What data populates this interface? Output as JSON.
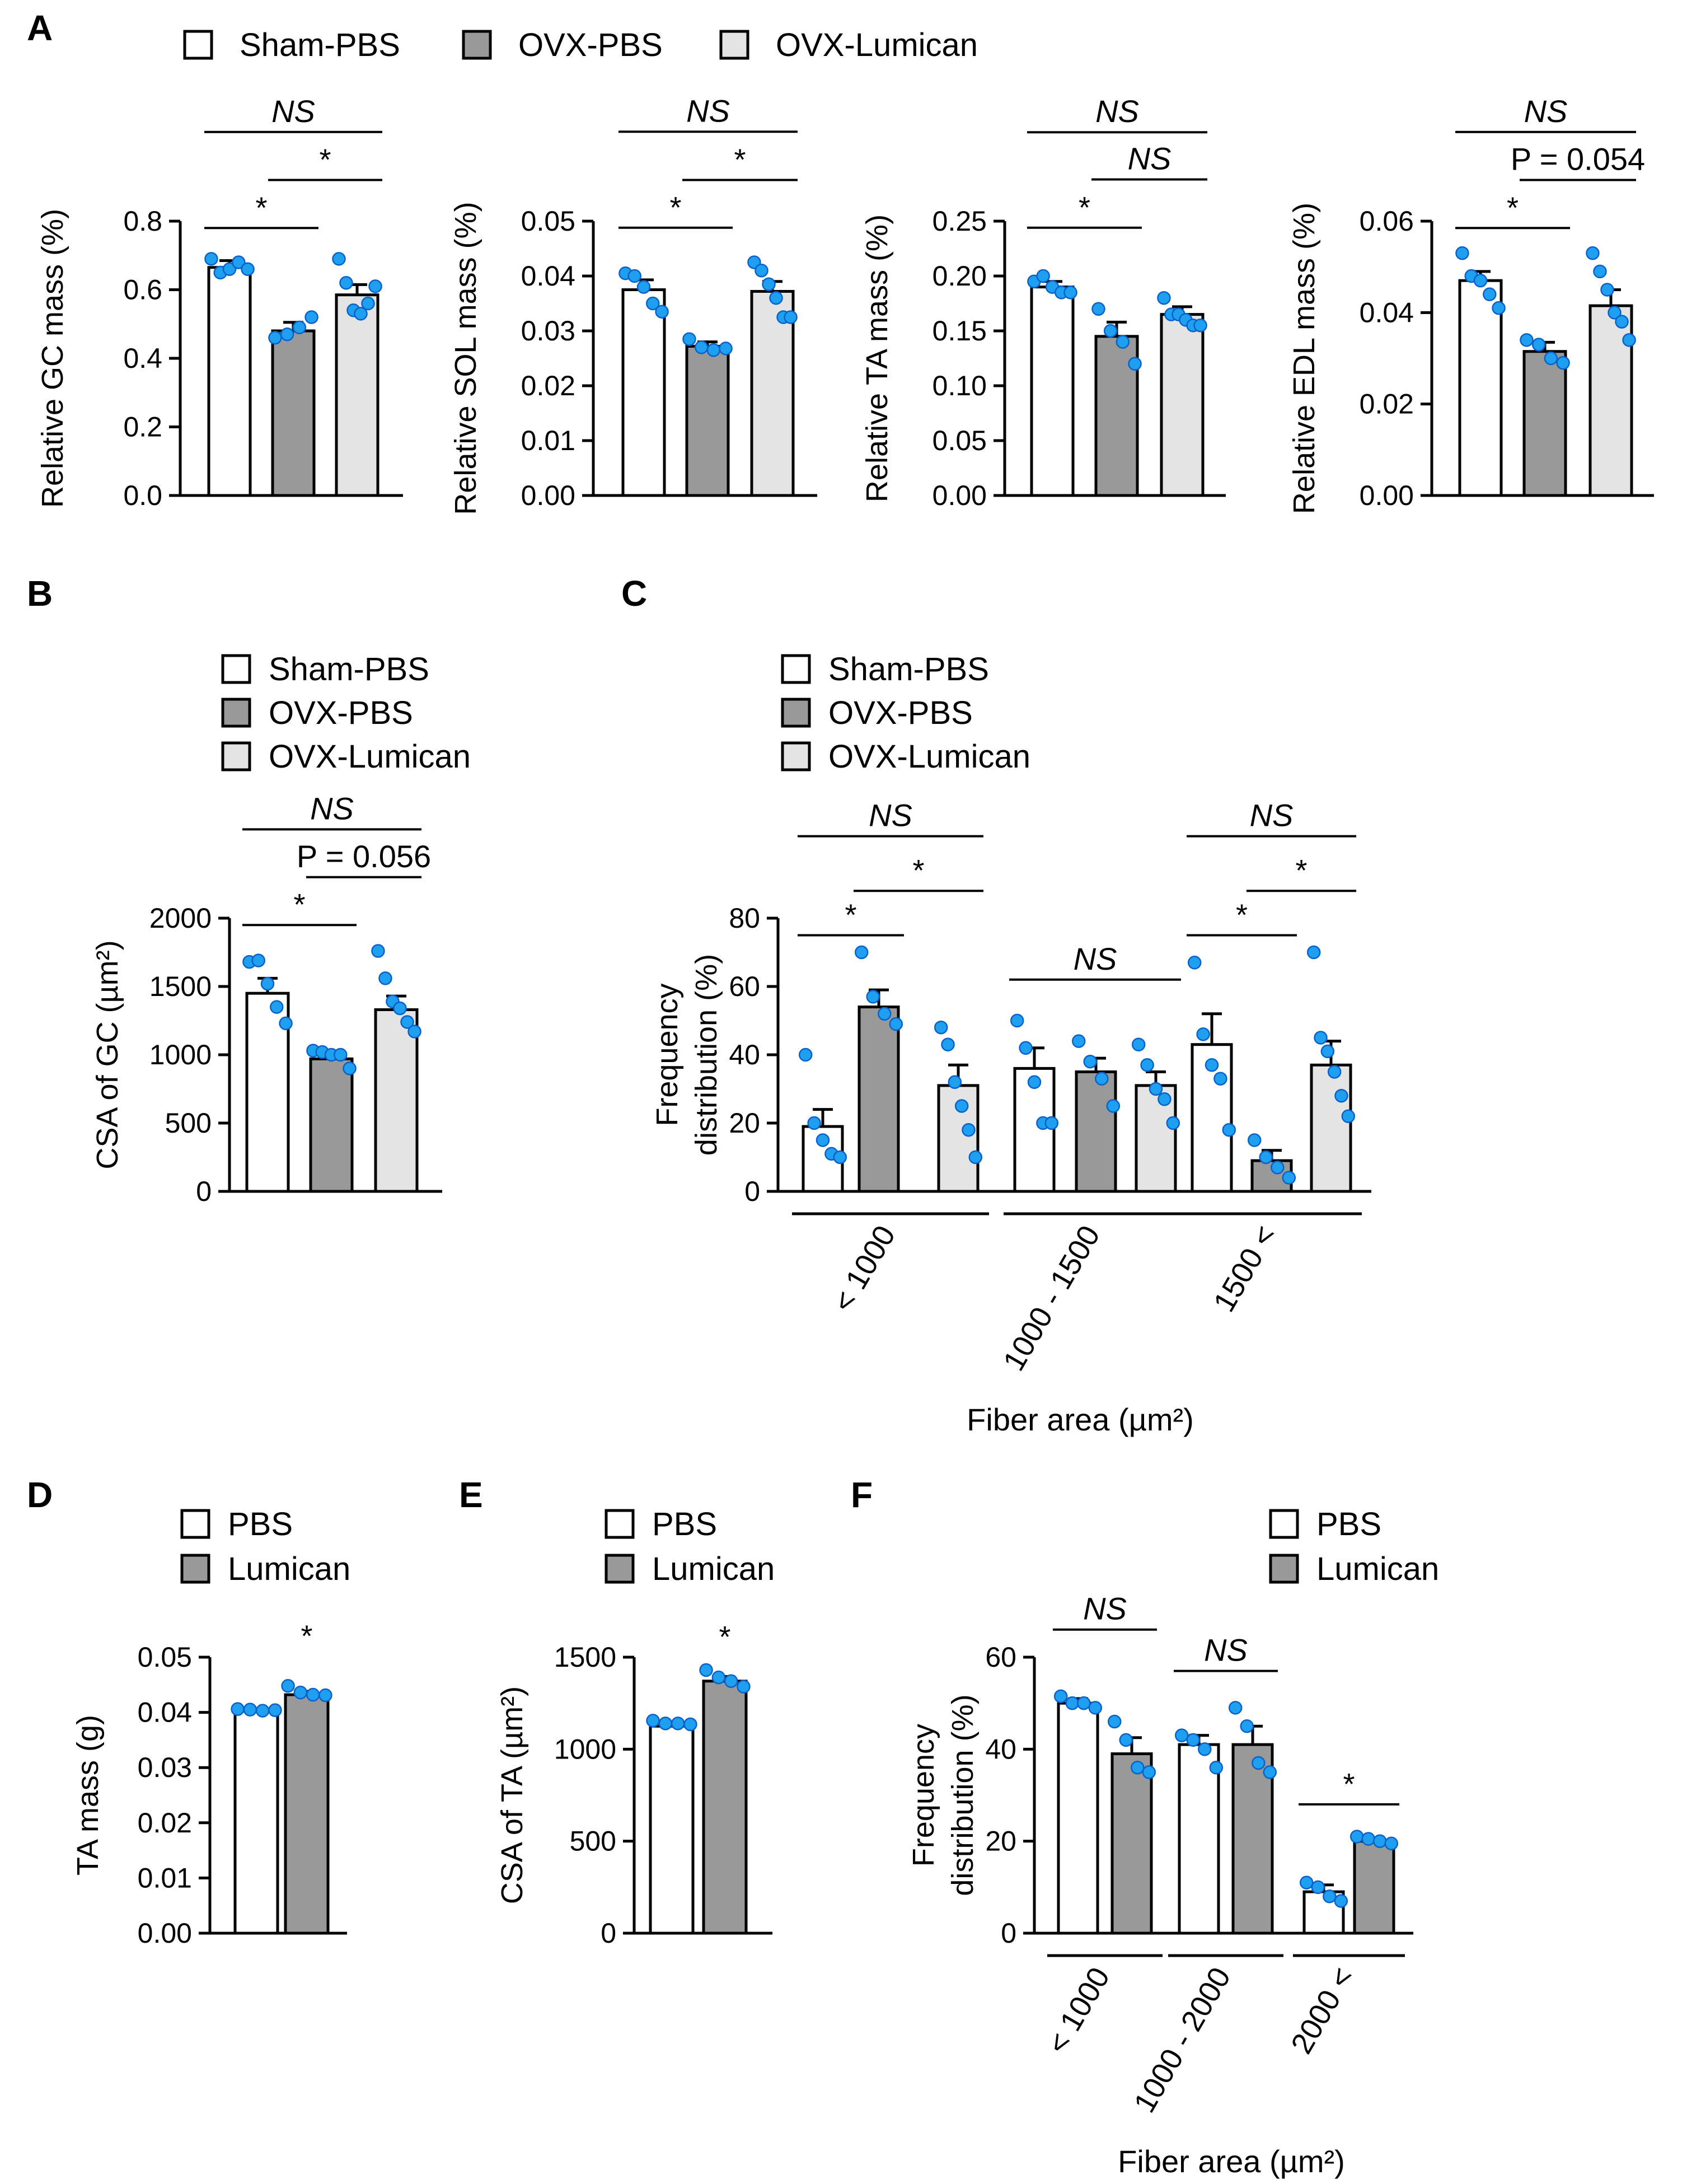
{
  "colors": {
    "Sham-PBS": "#ffffff",
    "OVX-PBS": "#999999",
    "OVX-Lumican": "#e4e4e4",
    "PBS": "#ffffff",
    "Lumican": "#999999",
    "points": "#1f9ff0"
  },
  "legends": {
    "three_groups": [
      "Sham-PBS",
      "OVX-PBS",
      "OVX-Lumican"
    ],
    "two_groups": [
      "PBS",
      "Lumican"
    ]
  },
  "chart_data": [
    {
      "id": "A1",
      "panel": "A",
      "type": "bar",
      "title": "",
      "xlabel": "",
      "ylabel": "Relative GC mass (%)",
      "ylim": [
        0,
        0.8
      ],
      "yticks": [
        "0.0",
        "0.2",
        "0.4",
        "0.6",
        "0.8"
      ],
      "categories": [
        "Sham-PBS",
        "OVX-PBS",
        "OVX-Lumican"
      ],
      "values": [
        0.665,
        0.48,
        0.585
      ],
      "errors": [
        0.02,
        0.025,
        0.03
      ],
      "points": [
        [
          0.69,
          0.65,
          0.66,
          0.68,
          0.66
        ],
        [
          0.46,
          0.47,
          0.49,
          0.52
        ],
        [
          0.69,
          0.62,
          0.54,
          0.53,
          0.56,
          0.61
        ]
      ],
      "annotations": [
        {
          "text": "NS",
          "from": 0,
          "to": 2,
          "y": 1.06,
          "italic": true
        },
        {
          "text": "*",
          "from": 0,
          "to": 1,
          "y": 0.78
        },
        {
          "text": "*",
          "from": 1,
          "to": 2,
          "y": 0.92
        }
      ]
    },
    {
      "id": "A2",
      "panel": "A",
      "type": "bar",
      "title": "",
      "xlabel": "",
      "ylabel": "Relative SOL mass (%)",
      "ylim": [
        0,
        0.05
      ],
      "yticks": [
        "0.00",
        "0.01",
        "0.02",
        "0.03",
        "0.04",
        "0.05"
      ],
      "categories": [
        "Sham-PBS",
        "OVX-PBS",
        "OVX-Lumican"
      ],
      "values": [
        0.0375,
        0.0272,
        0.0372
      ],
      "errors": [
        0.0018,
        0.0008,
        0.0018
      ],
      "points": [
        [
          0.0405,
          0.04,
          0.038,
          0.035,
          0.0335
        ],
        [
          0.0285,
          0.027,
          0.0265,
          0.0268
        ],
        [
          0.0425,
          0.041,
          0.0385,
          0.036,
          0.0325,
          0.0325
        ]
      ],
      "annotations": [
        {
          "text": "NS",
          "from": 0,
          "to": 2,
          "y": 0.0663,
          "italic": true
        },
        {
          "text": "*",
          "from": 0,
          "to": 1,
          "y": 0.0488
        },
        {
          "text": "*",
          "from": 1,
          "to": 2,
          "y": 0.0575
        }
      ]
    },
    {
      "id": "A3",
      "panel": "A",
      "type": "bar",
      "title": "",
      "xlabel": "",
      "ylabel": "Relative TA mass (%)",
      "ylim": [
        0,
        0.25
      ],
      "yticks": [
        "0.00",
        "0.05",
        "0.10",
        "0.15",
        "0.20",
        "0.25"
      ],
      "categories": [
        "Sham-PBS",
        "OVX-PBS",
        "OVX-Lumican"
      ],
      "values": [
        0.19,
        0.145,
        0.165
      ],
      "errors": [
        0.005,
        0.013,
        0.007
      ],
      "points": [
        [
          0.195,
          0.2,
          0.19,
          0.185,
          0.185
        ],
        [
          0.17,
          0.15,
          0.14,
          0.12
        ],
        [
          0.18,
          0.165,
          0.165,
          0.16,
          0.155,
          0.155
        ]
      ],
      "annotations": [
        {
          "text": "NS",
          "from": 0,
          "to": 2,
          "y": 0.331,
          "italic": true
        },
        {
          "text": "*",
          "from": 0,
          "to": 1,
          "y": 0.244
        },
        {
          "text": "NS",
          "from": 1,
          "to": 2,
          "y": 0.288,
          "italic": true
        }
      ]
    },
    {
      "id": "A4",
      "panel": "A",
      "type": "bar",
      "title": "",
      "xlabel": "",
      "ylabel": "Relative EDL mass (%)",
      "ylim": [
        0,
        0.06
      ],
      "yticks": [
        "0.00",
        "0.02",
        "0.04",
        "0.06"
      ],
      "categories": [
        "Sham-PBS",
        "OVX-PBS",
        "OVX-Lumican"
      ],
      "values": [
        0.047,
        0.0315,
        0.0415
      ],
      "errors": [
        0.002,
        0.002,
        0.0035
      ],
      "points": [
        [
          0.053,
          0.048,
          0.047,
          0.044,
          0.041
        ],
        [
          0.034,
          0.033,
          0.03,
          0.029
        ],
        [
          0.053,
          0.049,
          0.045,
          0.04,
          0.038,
          0.034
        ]
      ],
      "annotations": [
        {
          "text": "NS",
          "from": 0,
          "to": 2,
          "y": 0.0795,
          "italic": true
        },
        {
          "text": "*",
          "from": 0,
          "to": 1,
          "y": 0.0585
        },
        {
          "text": "P = 0.054",
          "from": 1,
          "to": 2,
          "y": 0.069,
          "pvalue": true
        }
      ]
    },
    {
      "id": "B",
      "panel": "B",
      "type": "bar",
      "title": "",
      "xlabel": "",
      "ylabel": "CSA of GC (µm²)",
      "ylim": [
        0,
        2000
      ],
      "yticks": [
        "0",
        "500",
        "1000",
        "1500",
        "2000"
      ],
      "categories": [
        "Sham-PBS",
        "OVX-PBS",
        "OVX-Lumican"
      ],
      "values": [
        1450,
        970,
        1330
      ],
      "errors": [
        110,
        30,
        100
      ],
      "points": [
        [
          1680,
          1690,
          1520,
          1350,
          1230
        ],
        [
          1030,
          1020,
          1000,
          1000,
          900
        ],
        [
          1760,
          1560,
          1390,
          1340,
          1240,
          1170
        ]
      ],
      "annotations": [
        {
          "text": "NS",
          "from": 0,
          "to": 2,
          "y": 2650,
          "italic": true
        },
        {
          "text": "*",
          "from": 0,
          "to": 1,
          "y": 1950
        },
        {
          "text": "P = 0.056",
          "from": 1,
          "to": 2,
          "y": 2300,
          "pvalue": true
        }
      ]
    },
    {
      "id": "C",
      "panel": "C",
      "type": "bar",
      "title": "",
      "xlabel": "Fiber area (µm²)",
      "ylabel": "Frequency distribution (%)",
      "ylim": [
        0,
        80
      ],
      "yticks": [
        "0",
        "20",
        "40",
        "60",
        "80"
      ],
      "categories": [
        "< 1000",
        "1000 - 1500",
        "1500 <"
      ],
      "series": [
        {
          "name": "Sham-PBS",
          "values": [
            19,
            36,
            43
          ],
          "errors": [
            5,
            6,
            9
          ],
          "points": [
            [
              40,
              20,
              15,
              11,
              10
            ],
            [
              50,
              42,
              32,
              20,
              20
            ],
            [
              67,
              46,
              37,
              33,
              18
            ]
          ]
        },
        {
          "name": "OVX-PBS",
          "values": [
            54,
            35,
            9
          ],
          "errors": [
            5,
            4,
            3
          ],
          "points": [
            [
              70,
              57,
              52,
              49
            ],
            [
              44,
              38,
              33,
              25
            ],
            [
              15,
              10,
              7,
              4
            ]
          ]
        },
        {
          "name": "OVX-Lumican",
          "values": [
            31,
            31,
            37
          ],
          "errors": [
            6,
            4,
            7
          ],
          "points": [
            [
              48,
              43,
              32,
              25,
              18,
              10
            ],
            [
              43,
              37,
              30,
              27,
              20
            ],
            [
              70,
              45,
              41,
              35,
              28,
              22
            ]
          ]
        }
      ],
      "annotations": [
        {
          "text": "NS",
          "group": 0,
          "from": 0,
          "to": 2,
          "y": 104,
          "italic": true
        },
        {
          "text": "*",
          "group": 0,
          "from": 0,
          "to": 1,
          "y": 75
        },
        {
          "text": "*",
          "group": 0,
          "from": 1,
          "to": 2,
          "y": 88
        },
        {
          "text": "NS",
          "group": 1,
          "from": 0,
          "to": 2,
          "y": 62,
          "italic": true
        },
        {
          "text": "NS",
          "group": 2,
          "from": 0,
          "to": 2,
          "y": 104,
          "italic": true
        },
        {
          "text": "*",
          "group": 2,
          "from": 0,
          "to": 1,
          "y": 75
        },
        {
          "text": "*",
          "group": 2,
          "from": 1,
          "to": 2,
          "y": 88
        }
      ]
    },
    {
      "id": "D",
      "panel": "D",
      "type": "bar",
      "title": "",
      "xlabel": "",
      "ylabel": "TA mass (g)",
      "ylim": [
        0,
        0.05
      ],
      "yticks": [
        "0.00",
        "0.01",
        "0.02",
        "0.03",
        "0.04",
        "0.05"
      ],
      "categories": [
        "PBS",
        "Lumican"
      ],
      "values": [
        0.0402,
        0.0432
      ],
      "errors": [
        0.0003,
        0.0006
      ],
      "points": [
        [
          0.0406,
          0.0405,
          0.0403,
          0.0404
        ],
        [
          0.0448,
          0.0436,
          0.0432,
          0.0431
        ]
      ],
      "annotations": [
        {
          "text": "*",
          "bar": 1,
          "y": 0.052
        }
      ]
    },
    {
      "id": "E",
      "panel": "E",
      "type": "bar",
      "title": "",
      "xlabel": "",
      "ylabel": "CSA of TA (µm²)",
      "ylim": [
        0,
        1500
      ],
      "yticks": [
        "0",
        "500",
        "1000",
        "1500"
      ],
      "categories": [
        "PBS",
        "Lumican"
      ],
      "values": [
        1125,
        1370
      ],
      "errors": [
        15,
        25
      ],
      "points": [
        [
          1155,
          1140,
          1140,
          1135
        ],
        [
          1430,
          1390,
          1370,
          1340
        ]
      ],
      "annotations": [
        {
          "text": "*",
          "bar": 1,
          "y": 1555
        }
      ]
    },
    {
      "id": "F",
      "panel": "F",
      "type": "bar",
      "title": "",
      "xlabel": "Fiber area (µm²)",
      "ylabel": "Frequency distribution (%)",
      "ylim": [
        0,
        60
      ],
      "yticks": [
        "0",
        "20",
        "40",
        "60"
      ],
      "categories": [
        "< 1000",
        "1000 - 2000",
        "2000 <"
      ],
      "series": [
        {
          "name": "PBS",
          "values": [
            50,
            41,
            9
          ],
          "errors": [
            1,
            2,
            1.5
          ],
          "points": [
            [
              51.5,
              50,
              50,
              49
            ],
            [
              43,
              42,
              40,
              36
            ],
            [
              11,
              10,
              8,
              7
            ]
          ]
        },
        {
          "name": "Lumican",
          "values": [
            39,
            41,
            20
          ],
          "errors": [
            3.5,
            4,
            0.5
          ],
          "points": [
            [
              46,
              42,
              36,
              35
            ],
            [
              49,
              45,
              37,
              35
            ],
            [
              21,
              20.5,
              20,
              19.5
            ]
          ]
        }
      ],
      "annotations": [
        {
          "text": "NS",
          "group": 0,
          "from": 0,
          "to": 1,
          "y": 66,
          "italic": true
        },
        {
          "text": "NS",
          "group": 1,
          "from": 0,
          "to": 1,
          "y": 57,
          "italic": true
        },
        {
          "text": "*",
          "group": 2,
          "from": 0,
          "to": 1,
          "y": 28
        }
      ]
    }
  ]
}
